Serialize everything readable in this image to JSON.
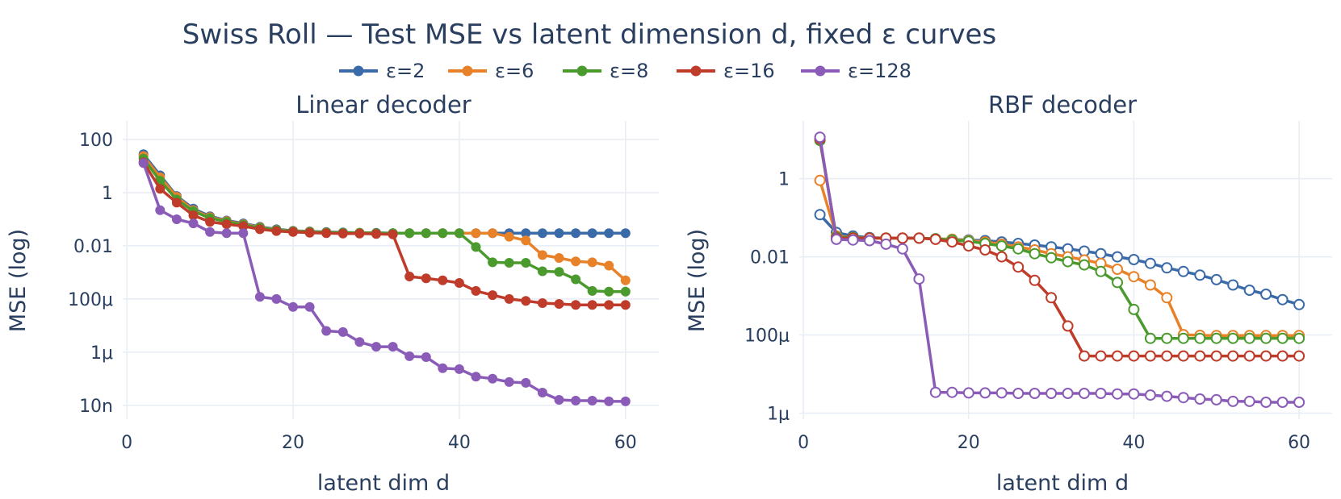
{
  "title": "Swiss Roll — Test MSE vs latent dimension d, fixed ε curves",
  "legend": [
    {
      "label": "ε=2",
      "color": "#3a6aa8"
    },
    {
      "label": "ε=6",
      "color": "#e8822a"
    },
    {
      "label": "ε=8",
      "color": "#4a9a2e"
    },
    {
      "label": "ε=16",
      "color": "#bf3b2a"
    },
    {
      "label": "ε=128",
      "color": "#8a5cb8"
    }
  ],
  "chart_data": [
    {
      "type": "line",
      "title": "Linear decoder",
      "xlabel": "latent dim d",
      "ylabel": "MSE (log)",
      "xscale": "linear",
      "yscale": "log",
      "xlim": [
        -0.5,
        64
      ],
      "ylim": [
        3e-09,
        500
      ],
      "xticks": [
        0,
        20,
        40,
        60
      ],
      "xtick_labels": [
        "0",
        "20",
        "40",
        "60"
      ],
      "yticks": [
        1e-08,
        1e-06,
        0.0001,
        0.01,
        1,
        100
      ],
      "ytick_labels": [
        "10n",
        "1μ",
        "100μ",
        "0.01",
        "1",
        "100"
      ],
      "marker": "filled",
      "x": [
        2,
        4,
        6,
        8,
        10,
        12,
        14,
        16,
        18,
        20,
        22,
        24,
        26,
        28,
        30,
        32,
        34,
        36,
        38,
        40,
        42,
        44,
        46,
        48,
        50,
        52,
        54,
        56,
        58,
        60
      ],
      "series": [
        {
          "name": "ε=2",
          "color": "#3a6aa8",
          "values": [
            28,
            4.5,
            0.75,
            0.25,
            0.13,
            0.09,
            0.07,
            0.052,
            0.042,
            0.037,
            0.035,
            0.033,
            0.032,
            0.031,
            0.031,
            0.03,
            0.03,
            0.03,
            0.03,
            0.03,
            0.03,
            0.03,
            0.03,
            0.03,
            0.03,
            0.03,
            0.03,
            0.03,
            0.03,
            0.03
          ]
        },
        {
          "name": "ε=6",
          "color": "#e8822a",
          "values": [
            24,
            3.8,
            0.7,
            0.22,
            0.12,
            0.085,
            0.065,
            0.05,
            0.04,
            0.036,
            0.034,
            0.032,
            0.031,
            0.031,
            0.03,
            0.03,
            0.03,
            0.03,
            0.03,
            0.03,
            0.03,
            0.03,
            0.022,
            0.016,
            0.0045,
            0.0035,
            0.0026,
            0.0024,
            0.0018,
            0.0005
          ]
        },
        {
          "name": "ε=8",
          "color": "#4a9a2e",
          "values": [
            19,
            2.8,
            0.55,
            0.2,
            0.11,
            0.08,
            0.062,
            0.048,
            0.039,
            0.035,
            0.033,
            0.032,
            0.031,
            0.031,
            0.03,
            0.03,
            0.03,
            0.03,
            0.03,
            0.03,
            0.009,
            0.0024,
            0.0023,
            0.0023,
            0.0011,
            0.00105,
            0.00055,
            0.0002,
            0.00019,
            0.00019
          ]
        },
        {
          "name": "ε=16",
          "color": "#bf3b2a",
          "values": [
            14,
            1.4,
            0.42,
            0.14,
            0.08,
            0.065,
            0.055,
            0.042,
            0.036,
            0.033,
            0.031,
            0.03,
            0.029,
            0.029,
            0.028,
            0.027,
            0.0007,
            0.0006,
            0.0005,
            0.0004,
            0.0002,
            0.00014,
            0.0001,
            8.5e-05,
            7e-05,
            6.5e-05,
            6e-05,
            6e-05,
            6e-05,
            6e-05
          ]
        },
        {
          "name": "ε=128",
          "color": "#8a5cb8",
          "values": [
            13,
            0.22,
            0.1,
            0.07,
            0.033,
            0.03,
            0.03,
            0.00012,
            0.0001,
            5e-05,
            5e-05,
            6.3e-06,
            5.7e-06,
            2.4e-06,
            1.6e-06,
            1.6e-06,
            7e-07,
            6.5e-07,
            2.5e-07,
            2.3e-07,
            1.2e-07,
            1e-07,
            7.5e-08,
            7e-08,
            3e-08,
            1.6e-08,
            1.5e-08,
            1.5e-08,
            1.4e-08,
            1.4e-08
          ]
        }
      ]
    },
    {
      "type": "line",
      "title": "RBF decoder",
      "xlabel": "latent dim d",
      "ylabel": "MSE (log)",
      "xscale": "linear",
      "yscale": "log",
      "xlim": [
        -0.5,
        64
      ],
      "ylim": [
        7e-07,
        30
      ],
      "xticks": [
        0,
        20,
        40,
        60
      ],
      "xtick_labels": [
        "0",
        "20",
        "40",
        "60"
      ],
      "yticks": [
        1e-06,
        0.0001,
        0.01,
        1
      ],
      "ytick_labels": [
        "1μ",
        "100μ",
        "0.01",
        "1"
      ],
      "marker": "open",
      "x": [
        2,
        4,
        6,
        8,
        10,
        12,
        14,
        16,
        18,
        20,
        22,
        24,
        26,
        28,
        30,
        32,
        34,
        36,
        38,
        40,
        42,
        44,
        46,
        48,
        50,
        52,
        54,
        56,
        58,
        60
      ],
      "series": [
        {
          "name": "ε=2",
          "color": "#3a6aa8",
          "values": [
            0.12,
            0.042,
            0.034,
            0.031,
            0.03,
            0.03,
            0.03,
            0.029,
            0.028,
            0.027,
            0.026,
            0.024,
            0.022,
            0.02,
            0.018,
            0.016,
            0.014,
            0.012,
            0.01,
            0.0085,
            0.0068,
            0.0052,
            0.0042,
            0.0034,
            0.0026,
            0.0019,
            0.0014,
            0.0011,
            0.0008,
            0.0006
          ]
        },
        {
          "name": "ε=6",
          "color": "#e8822a",
          "values": [
            0.9,
            0.034,
            0.031,
            0.03,
            0.03,
            0.03,
            0.03,
            0.029,
            0.028,
            0.026,
            0.024,
            0.021,
            0.018,
            0.015,
            0.012,
            0.01,
            0.0083,
            0.0068,
            0.0048,
            0.0031,
            0.0019,
            0.0009,
            0.000102,
            9.8e-05,
            9.7e-05,
            9.7e-05,
            9.7e-05,
            9.7e-05,
            9.7e-05,
            9.7e-05
          ]
        },
        {
          "name": "ε=8",
          "color": "#4a9a2e",
          "values": [
            9.5,
            0.032,
            0.031,
            0.03,
            0.03,
            0.03,
            0.03,
            0.029,
            0.027,
            0.025,
            0.022,
            0.019,
            0.016,
            0.012,
            0.0095,
            0.0075,
            0.0062,
            0.0042,
            0.0022,
            0.00045,
            8.2e-05,
            8.2e-05,
            8.2e-05,
            8.2e-05,
            8.2e-05,
            8.2e-05,
            8.2e-05,
            8.2e-05,
            8.2e-05,
            8.2e-05
          ]
        },
        {
          "name": "ε=16",
          "color": "#bf3b2a",
          "values": [
            10.5,
            0.03,
            0.03,
            0.03,
            0.03,
            0.03,
            0.03,
            0.028,
            0.024,
            0.019,
            0.015,
            0.01,
            0.0055,
            0.0025,
            0.0009,
            0.00017,
            2.9e-05,
            2.9e-05,
            2.9e-05,
            2.9e-05,
            2.9e-05,
            2.9e-05,
            2.9e-05,
            2.9e-05,
            2.9e-05,
            2.9e-05,
            2.9e-05,
            2.9e-05,
            2.9e-05,
            2.9e-05
          ]
        },
        {
          "name": "ε=128",
          "color": "#8a5cb8",
          "values": [
            11.5,
            0.028,
            0.027,
            0.026,
            0.021,
            0.016,
            0.0027,
            3.4e-06,
            3.4e-06,
            3.3e-06,
            3.3e-06,
            3.3e-06,
            3.2e-06,
            3.2e-06,
            3.2e-06,
            3.2e-06,
            3.2e-06,
            3.2e-06,
            3.1e-06,
            3.1e-06,
            2.9e-06,
            2.7e-06,
            2.5e-06,
            2.3e-06,
            2.2e-06,
            2e-06,
            2e-06,
            1.9e-06,
            1.9e-06,
            1.9e-06
          ]
        }
      ]
    }
  ]
}
